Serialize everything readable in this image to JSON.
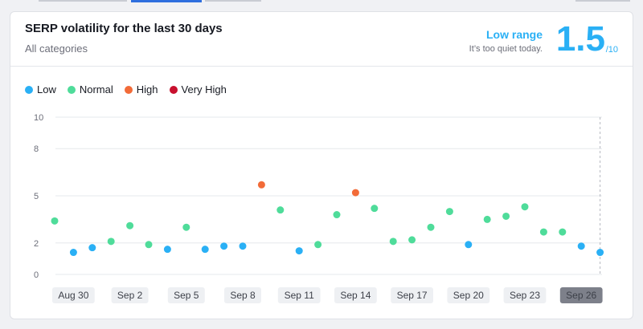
{
  "widget": {
    "title": "SERP volatility for the last 30 days",
    "subtitle": "All categories",
    "range_label": "Low range",
    "range_desc": "It’s too quiet today.",
    "score": "1.5",
    "score_denominator": "/10"
  },
  "colors": {
    "low": "#2ab0f5",
    "normal": "#4fdc9a",
    "high": "#f26b38",
    "very_high": "#c8102e"
  },
  "chart_data": {
    "type": "scatter",
    "legend": [
      {
        "key": "low",
        "label": "Low"
      },
      {
        "key": "normal",
        "label": "Normal"
      },
      {
        "key": "high",
        "label": "High"
      },
      {
        "key": "very_high",
        "label": "Very High"
      }
    ],
    "legend_placement": "top-left",
    "y_ticks": [
      0,
      2,
      5,
      8,
      10
    ],
    "ylim": [
      0,
      10
    ],
    "grid": true,
    "x_tick_labels": [
      "Aug 30",
      "Sep 2",
      "Sep 5",
      "Sep 8",
      "Sep 11",
      "Sep 14",
      "Sep 17",
      "Sep 20",
      "Sep 23",
      "Sep 26"
    ],
    "x_tick_positions": [
      1,
      4,
      7,
      10,
      13,
      16,
      19,
      22,
      25,
      28
    ],
    "highlighted_x_tick": "Sep 26",
    "points": [
      {
        "x": "Aug 29",
        "y": 3.4,
        "level": "normal"
      },
      {
        "x": "Aug 30",
        "y": 1.4,
        "level": "low"
      },
      {
        "x": "Aug 31",
        "y": 1.7,
        "level": "low"
      },
      {
        "x": "Sep 1",
        "y": 2.1,
        "level": "normal"
      },
      {
        "x": "Sep 2",
        "y": 3.1,
        "level": "normal"
      },
      {
        "x": "Sep 3",
        "y": 1.9,
        "level": "normal"
      },
      {
        "x": "Sep 4",
        "y": 1.6,
        "level": "low"
      },
      {
        "x": "Sep 5",
        "y": 3.0,
        "level": "normal"
      },
      {
        "x": "Sep 6",
        "y": 1.6,
        "level": "low"
      },
      {
        "x": "Sep 7",
        "y": 1.8,
        "level": "low"
      },
      {
        "x": "Sep 8",
        "y": 1.8,
        "level": "low"
      },
      {
        "x": "Sep 9",
        "y": 5.7,
        "level": "high"
      },
      {
        "x": "Sep 10",
        "y": 4.1,
        "level": "normal"
      },
      {
        "x": "Sep 11",
        "y": 1.5,
        "level": "low"
      },
      {
        "x": "Sep 12",
        "y": 1.9,
        "level": "normal"
      },
      {
        "x": "Sep 13",
        "y": 3.8,
        "level": "normal"
      },
      {
        "x": "Sep 14",
        "y": 5.2,
        "level": "high"
      },
      {
        "x": "Sep 15",
        "y": 4.2,
        "level": "normal"
      },
      {
        "x": "Sep 16",
        "y": 2.1,
        "level": "normal"
      },
      {
        "x": "Sep 17",
        "y": 2.2,
        "level": "normal"
      },
      {
        "x": "Sep 18",
        "y": 3.0,
        "level": "normal"
      },
      {
        "x": "Sep 19",
        "y": 4.0,
        "level": "normal"
      },
      {
        "x": "Sep 20",
        "y": 1.9,
        "level": "low"
      },
      {
        "x": "Sep 21",
        "y": 3.5,
        "level": "normal"
      },
      {
        "x": "Sep 22",
        "y": 3.7,
        "level": "normal"
      },
      {
        "x": "Sep 23",
        "y": 4.3,
        "level": "normal"
      },
      {
        "x": "Sep 24",
        "y": 2.7,
        "level": "normal"
      },
      {
        "x": "Sep 25",
        "y": 2.7,
        "level": "normal"
      },
      {
        "x": "Sep 26",
        "y": 1.8,
        "level": "low"
      },
      {
        "x": "Sep 27",
        "y": 1.4,
        "level": "low"
      }
    ]
  }
}
